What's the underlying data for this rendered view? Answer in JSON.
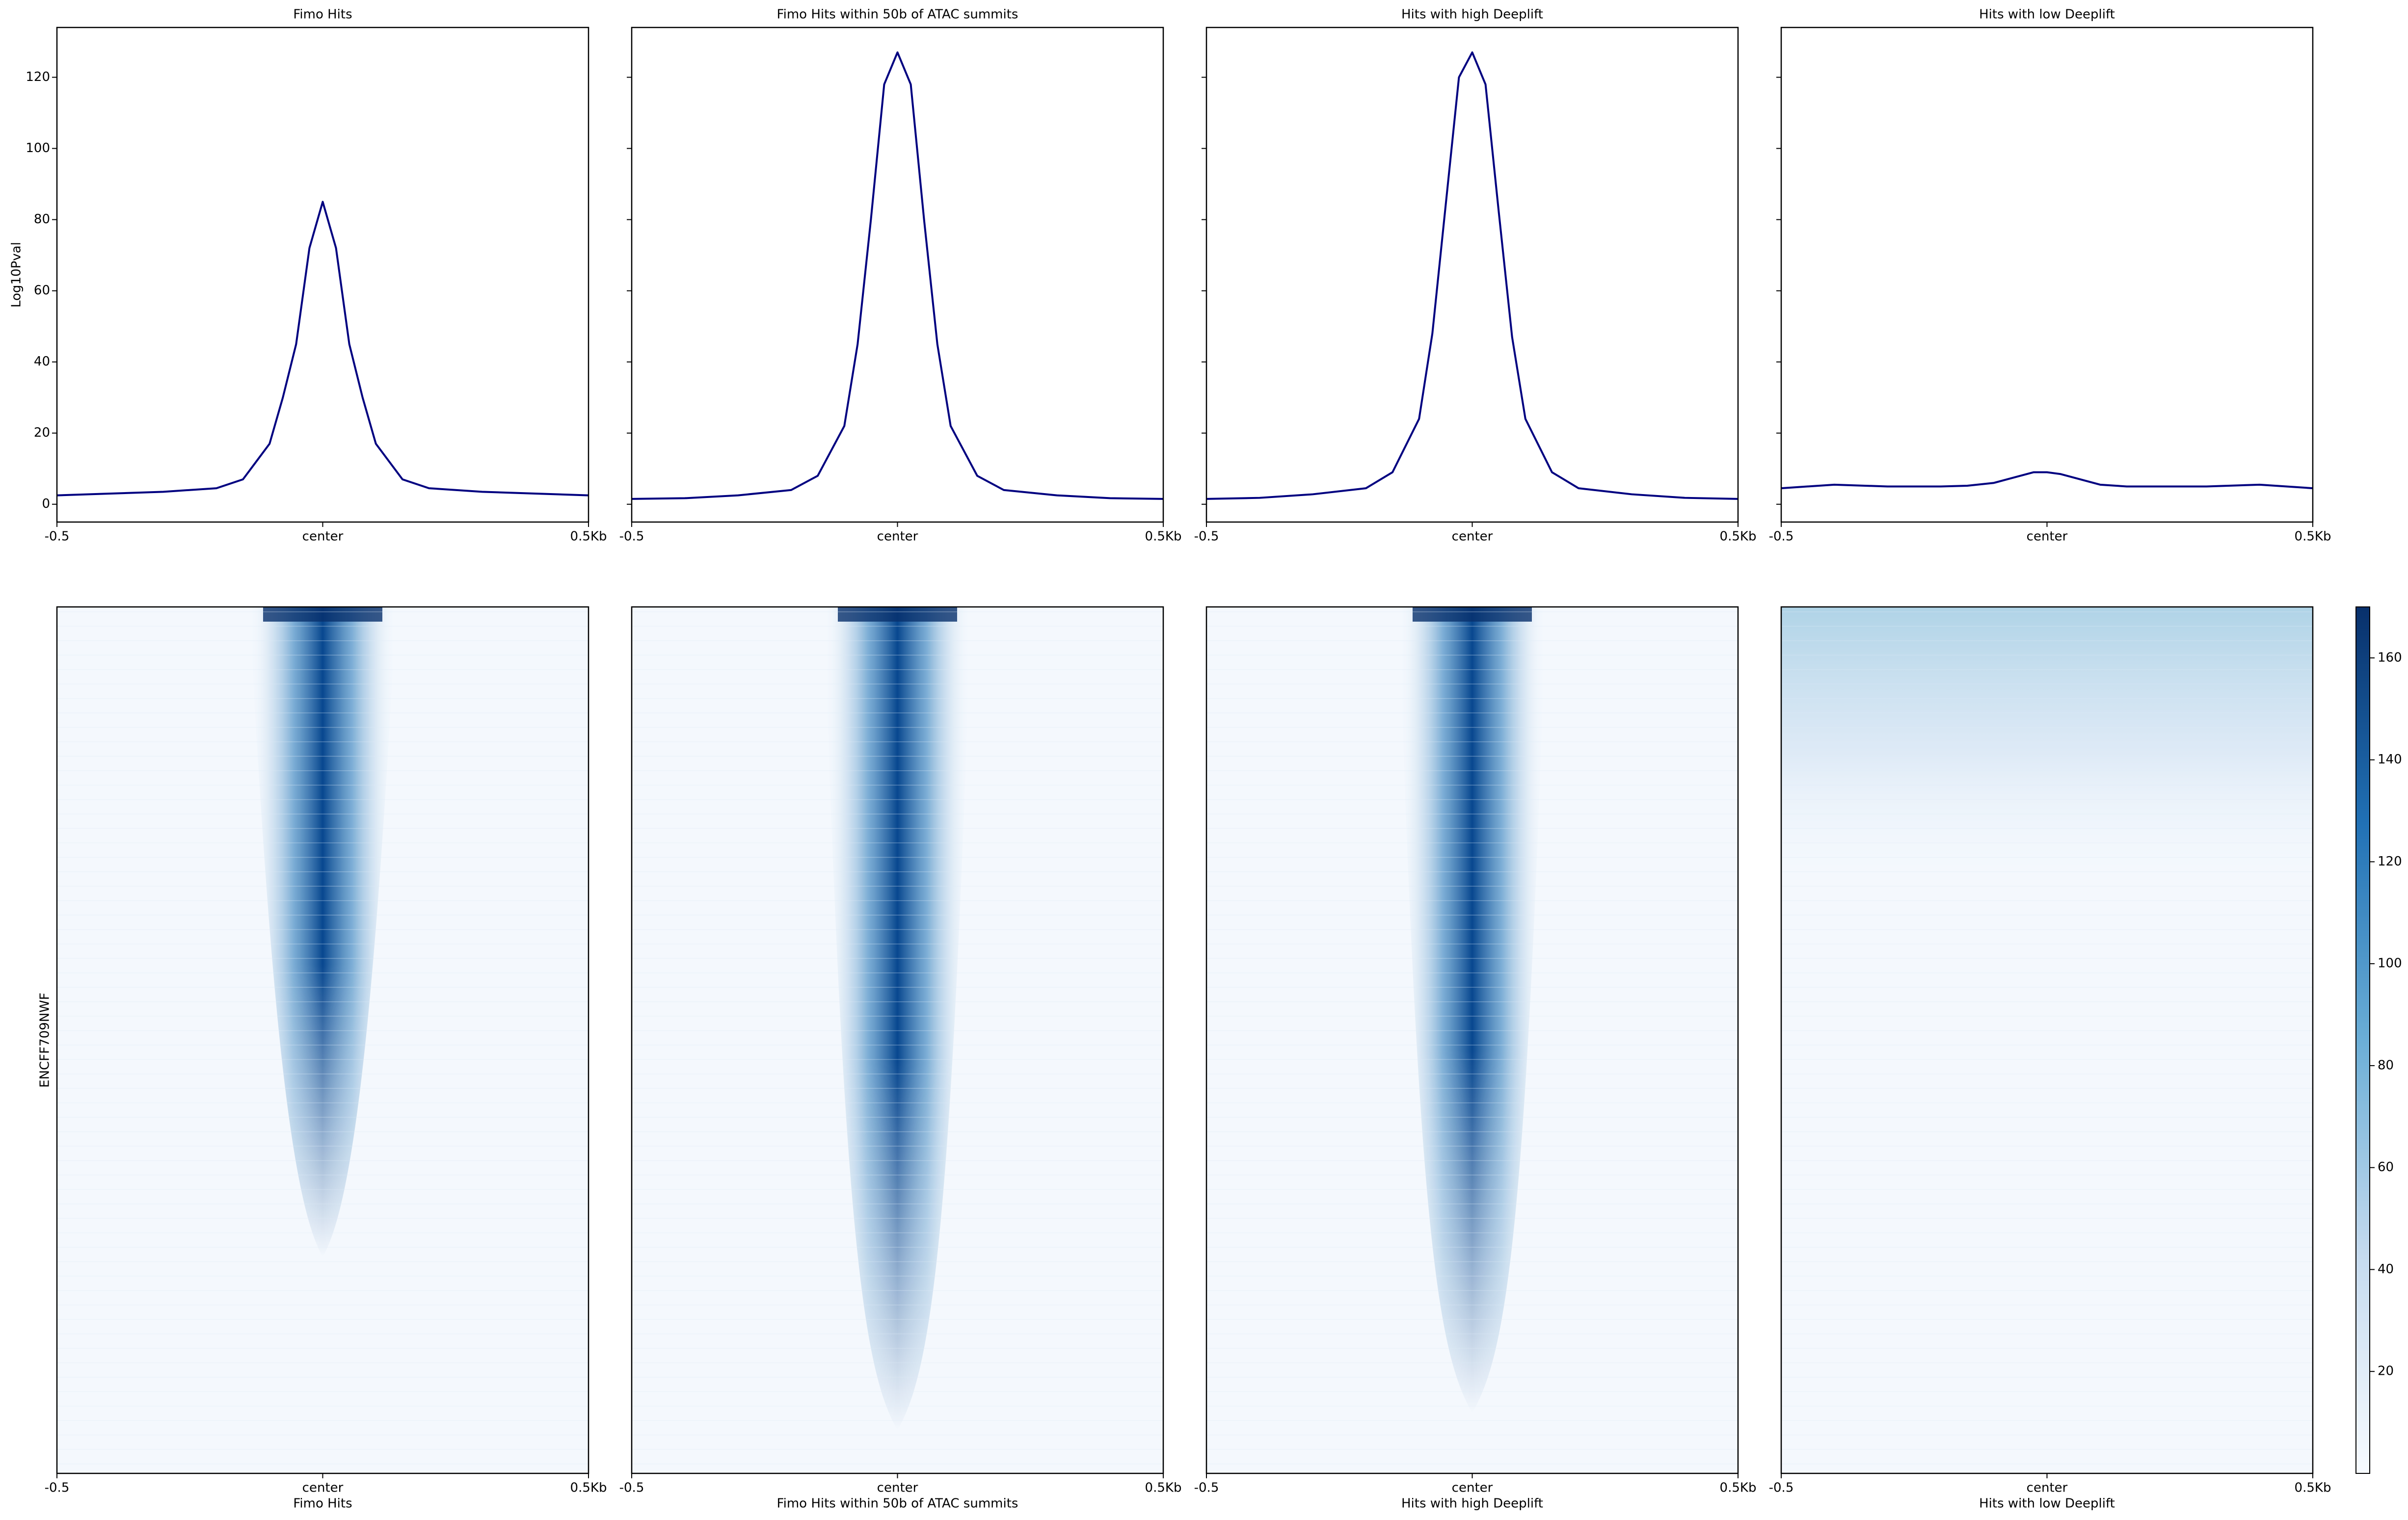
{
  "chart_data": [
    {
      "type": "line",
      "title": "Fimo Hits",
      "ylabel": "Log10Pval",
      "x": [
        -0.5,
        -0.4,
        -0.3,
        -0.2,
        -0.15,
        -0.1,
        -0.075,
        -0.05,
        -0.025,
        0,
        0.025,
        0.05,
        0.075,
        0.1,
        0.15,
        0.2,
        0.3,
        0.4,
        0.5
      ],
      "series": [
        {
          "color": "#000080",
          "values": [
            2.5,
            3,
            3.5,
            4.5,
            7,
            17,
            30,
            45,
            72,
            85,
            72,
            45,
            30,
            17,
            7,
            4.5,
            3.5,
            3,
            2.5
          ]
        }
      ],
      "xlim": [
        -0.5,
        0.5
      ],
      "xticks": [
        {
          "value": -0.5,
          "label": "-0.5"
        },
        {
          "value": 0,
          "label": "center"
        },
        {
          "value": 0.5,
          "label": "0.5Kb"
        }
      ],
      "ylim": [
        -5,
        134
      ],
      "yticks": [
        0,
        20,
        40,
        60,
        80,
        100,
        120
      ]
    },
    {
      "type": "line",
      "title": "Fimo Hits within 50b of ATAC summits",
      "x": [
        -0.5,
        -0.4,
        -0.3,
        -0.2,
        -0.15,
        -0.1,
        -0.075,
        -0.05,
        -0.025,
        0,
        0.025,
        0.05,
        0.075,
        0.1,
        0.15,
        0.2,
        0.3,
        0.4,
        0.5
      ],
      "series": [
        {
          "color": "#000080",
          "values": [
            1.5,
            1.7,
            2.5,
            4,
            8,
            22,
            45,
            80,
            118,
            127,
            118,
            80,
            45,
            22,
            8,
            4,
            2.5,
            1.7,
            1.5
          ]
        }
      ],
      "xlim": [
        -0.5,
        0.5
      ],
      "xticks": [
        {
          "value": -0.5,
          "label": "-0.5"
        },
        {
          "value": 0,
          "label": "center"
        },
        {
          "value": 0.5,
          "label": "0.5Kb"
        }
      ],
      "ylim": [
        -5,
        134
      ],
      "yticks": [
        0,
        20,
        40,
        60,
        80,
        100,
        120
      ]
    },
    {
      "type": "line",
      "title": "Hits with high Deeplift",
      "x": [
        -0.5,
        -0.4,
        -0.3,
        -0.2,
        -0.15,
        -0.1,
        -0.075,
        -0.05,
        -0.025,
        0,
        0.025,
        0.05,
        0.075,
        0.1,
        0.15,
        0.2,
        0.3,
        0.4,
        0.5
      ],
      "series": [
        {
          "color": "#000080",
          "values": [
            1.5,
            1.8,
            2.8,
            4.5,
            9,
            24,
            48,
            84,
            120,
            127,
            118,
            82,
            47,
            24,
            9,
            4.5,
            2.8,
            1.8,
            1.5
          ]
        }
      ],
      "xlim": [
        -0.5,
        0.5
      ],
      "xticks": [
        {
          "value": -0.5,
          "label": "-0.5"
        },
        {
          "value": 0,
          "label": "center"
        },
        {
          "value": 0.5,
          "label": "0.5Kb"
        }
      ],
      "ylim": [
        -5,
        134
      ],
      "yticks": [
        0,
        20,
        40,
        60,
        80,
        100,
        120
      ]
    },
    {
      "type": "line",
      "title": "Hits with low Deeplift",
      "x": [
        -0.5,
        -0.4,
        -0.3,
        -0.2,
        -0.15,
        -0.1,
        -0.075,
        -0.05,
        -0.025,
        0,
        0.025,
        0.05,
        0.075,
        0.1,
        0.15,
        0.2,
        0.3,
        0.4,
        0.5
      ],
      "series": [
        {
          "color": "#000080",
          "values": [
            4.5,
            5.5,
            5,
            5,
            5.2,
            6,
            7,
            8,
            9,
            9,
            8.5,
            7.5,
            6.5,
            5.5,
            5,
            5,
            5,
            5.5,
            4.5
          ]
        }
      ],
      "xlim": [
        -0.5,
        0.5
      ],
      "xticks": [
        {
          "value": -0.5,
          "label": "-0.5"
        },
        {
          "value": 0,
          "label": "center"
        },
        {
          "value": 0.5,
          "label": "0.5Kb"
        }
      ],
      "ylim": [
        -5,
        134
      ],
      "yticks": [
        0,
        20,
        40,
        60,
        80,
        100,
        120
      ]
    },
    {
      "type": "heatmap",
      "xlabel": "Fimo Hits",
      "ylabel": "ENCFF709NWF",
      "xlim": [
        -0.5,
        0.5
      ],
      "xticks": [
        {
          "value": -0.5,
          "label": "-0.5"
        },
        {
          "value": 0,
          "label": "center"
        },
        {
          "value": 0.5,
          "label": "0.5Kb"
        }
      ]
    },
    {
      "type": "heatmap",
      "xlabel": "Fimo Hits within 50b of ATAC summits",
      "xlim": [
        -0.5,
        0.5
      ],
      "xticks": [
        {
          "value": -0.5,
          "label": "-0.5"
        },
        {
          "value": 0,
          "label": "center"
        },
        {
          "value": 0.5,
          "label": "0.5Kb"
        }
      ]
    },
    {
      "type": "heatmap",
      "xlabel": "Hits with high Deeplift",
      "xlim": [
        -0.5,
        0.5
      ],
      "xticks": [
        {
          "value": -0.5,
          "label": "-0.5"
        },
        {
          "value": 0,
          "label": "center"
        },
        {
          "value": 0.5,
          "label": "0.5Kb"
        }
      ]
    },
    {
      "type": "heatmap",
      "xlabel": "Hits with low Deeplift",
      "xlim": [
        -0.5,
        0.5
      ],
      "xticks": [
        {
          "value": -0.5,
          "label": "-0.5"
        },
        {
          "value": 0,
          "label": "center"
        },
        {
          "value": 0.5,
          "label": "0.5Kb"
        }
      ],
      "colorbar": {
        "ylim": [
          0,
          170
        ],
        "yticks": [
          20,
          40,
          60,
          80,
          100,
          120,
          140,
          160
        ]
      }
    }
  ]
}
